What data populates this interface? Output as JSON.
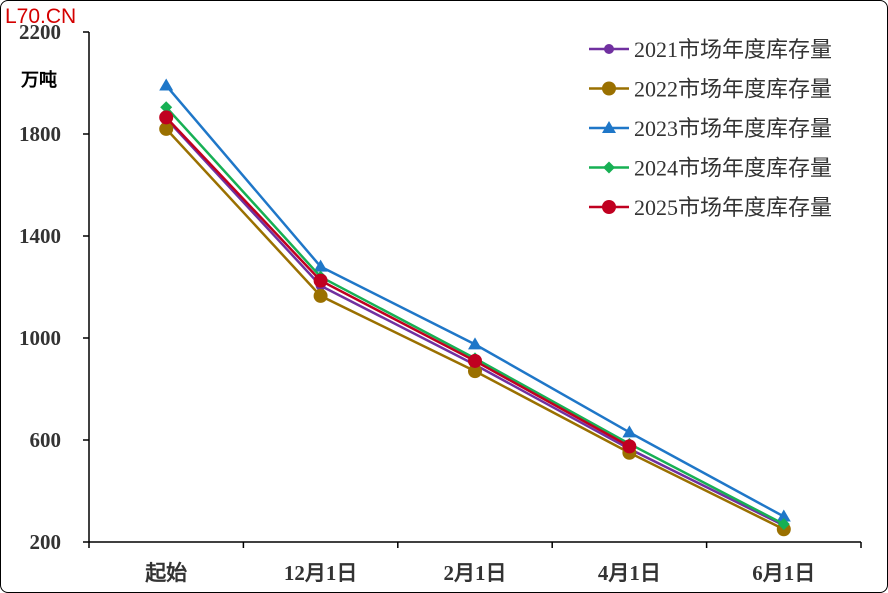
{
  "watermark": "L70.CN",
  "chart_data": {
    "type": "line",
    "title": "",
    "xlabel": "",
    "ylabel": "万吨",
    "categories": [
      "起始",
      "12月1日",
      "2月1日",
      "4月1日",
      "6月1日"
    ],
    "ylim": [
      200,
      2200
    ],
    "yticks": [
      200,
      600,
      1000,
      1400,
      1800,
      2200
    ],
    "grid": false,
    "legend_position": "top-right",
    "series": [
      {
        "name": "2021市场年度库存量",
        "color": "#7030a0",
        "marker": "circle-small",
        "values": [
          1860,
          1205,
          895,
          565,
          265
        ]
      },
      {
        "name": "2022市场年度库存量",
        "color": "#9a7000",
        "marker": "circle",
        "values": [
          1820,
          1165,
          870,
          550,
          250
        ]
      },
      {
        "name": "2023市场年度库存量",
        "color": "#1f77c8",
        "marker": "triangle",
        "values": [
          1990,
          1280,
          975,
          630,
          300
        ]
      },
      {
        "name": "2024市场年度库存量",
        "color": "#17b054",
        "marker": "diamond",
        "values": [
          1905,
          1240,
          920,
          585,
          270
        ]
      },
      {
        "name": "2025市场年度库存量",
        "color": "#c00020",
        "marker": "circle",
        "values": [
          1865,
          1225,
          910,
          575,
          null
        ]
      }
    ]
  }
}
